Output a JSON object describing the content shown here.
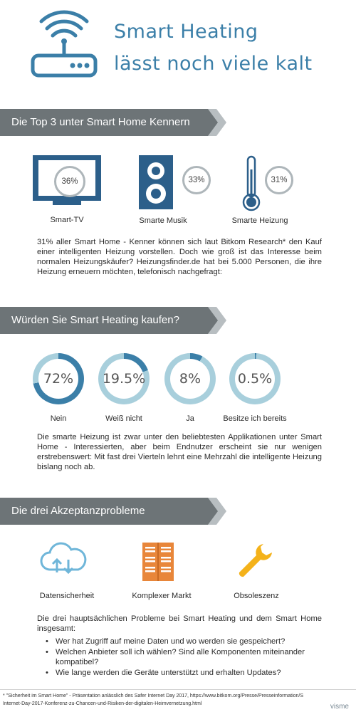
{
  "header": {
    "title_line1": "Smart Heating",
    "title_line2": "lässt noch viele kalt",
    "icon": "router-wifi-icon",
    "accent_color": "#3b7fa8"
  },
  "section1": {
    "heading": "Die Top 3 unter Smart Home Kennern",
    "items": [
      {
        "icon": "tv-icon",
        "percent": "36%",
        "label": "Smart-TV"
      },
      {
        "icon": "speaker-icon",
        "percent": "33%",
        "label": "Smarte Musik"
      },
      {
        "icon": "thermometer-icon",
        "percent": "31%",
        "label": "Smarte Heizung"
      }
    ],
    "text": "31% aller Smart Home - Kenner können sich laut Bitkom Research* den Kauf einer intelligenten Heizung vorstellen. Doch wie groß ist das Interesse beim normalen Heizungskäufer? Heizungsfinder.de hat bei 5.000 Personen, die ihre Heizung erneuern möchten, telefonisch nachgefragt:"
  },
  "section2": {
    "heading": "Würden Sie Smart Heating kaufen?",
    "rings": [
      {
        "value": "72%",
        "fraction": 0.72,
        "label": "Nein"
      },
      {
        "value": "19.5%",
        "fraction": 0.195,
        "label": "Weiß nicht"
      },
      {
        "value": "8%",
        "fraction": 0.08,
        "label": "Ja"
      },
      {
        "value": "0.5%",
        "fraction": 0.005,
        "label": "Besitze ich bereits"
      }
    ],
    "ring_color": "#3b7fa8",
    "ring_track_color": "#a8cfdc",
    "text": "Die smarte Heizung ist zwar unter den beliebtesten Applikationen unter Smart Home - Interessierten, aber beim Endnutzer erscheint sie nur wenigen erstrebenswert: Mit fast drei Vierteln lehnt eine Mehrzahl die intelligente Heizung bislang noch ab."
  },
  "section3": {
    "heading": "Die drei Akzeptanzprobleme",
    "items": [
      {
        "icon": "cloud-sync-icon",
        "label": "Datensicherheit"
      },
      {
        "icon": "server-icon",
        "label": "Komplexer Markt"
      },
      {
        "icon": "wrench-icon",
        "label": "Obsoleszenz"
      }
    ],
    "intro": "Die drei hauptsächlichen Probleme bei Smart Heating und dem Smart Home insgesamt:",
    "bullets": [
      "Wer hat Zugriff auf meine Daten und wo werden sie gespeichert?",
      "Welchen Anbieter soll ich wählen? Sind alle Komponenten miteinander kompatibel?",
      "Wie lange werden die Geräte unterstützt und erhalten Updates?"
    ]
  },
  "footer": {
    "line1": "* \"Sicherheit im Smart Home\" - Präsentation anlässlich des Safer Internet Day 2017, https://www.bitkom.org/Presse/Presseinformation/S",
    "line2": "Internet-Day-2017-Konferenz-zu-Chancen-und-Risiken-der-digitalen-Heimvernetzung.html",
    "brand": "visme"
  }
}
